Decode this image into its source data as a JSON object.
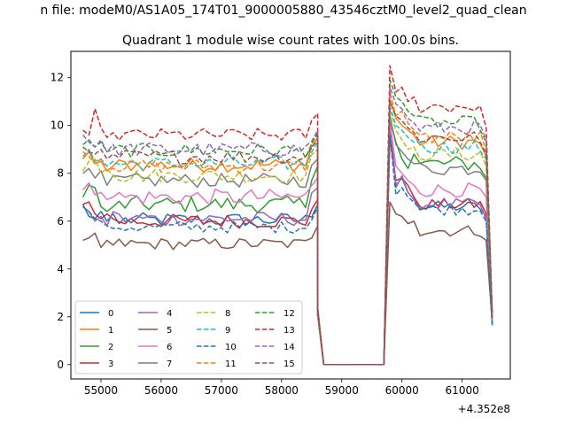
{
  "chart_data": {
    "type": "line",
    "suptitle": "n file: modeM0/AS1A05_174T01_9000005880_43546cztM0_level2_quad_clean",
    "title": "Quadrant 1 module wise count rates with 100.0s bins.",
    "xlabel": "",
    "ylabel": "",
    "x_offset_label": "+4.352e8",
    "xlim": [
      54500,
      61800
    ],
    "ylim": [
      -0.6,
      13.1
    ],
    "xticks": [
      55000,
      56000,
      57000,
      58000,
      59000,
      60000,
      61000
    ],
    "xtick_labels": [
      "55000",
      "56000",
      "57000",
      "58000",
      "59000",
      "60000",
      "61000"
    ],
    "yticks": [
      0,
      2,
      4,
      6,
      8,
      10,
      12
    ],
    "ytick_labels": [
      "0",
      "2",
      "4",
      "6",
      "8",
      "10",
      "12"
    ],
    "grid": false,
    "legend_position": "lower-left",
    "time_segments": [
      {
        "start": 54700,
        "step": 100,
        "count": 40
      },
      {
        "start": 59700,
        "step": 100,
        "count": 19
      }
    ],
    "gap": {
      "x": [
        58700,
        59000,
        59300,
        59600
      ]
    },
    "series": [
      {
        "name": "0",
        "color": "#1f77b4",
        "dash": "solid",
        "first": [
          6.7,
          6.2,
          6.1,
          6.4,
          6.0,
          6.3,
          5.9
        ],
        "base": 6.05,
        "noise": 0.3,
        "end": 6.7,
        "second": [
          10.2,
          7.5,
          7.8,
          7.2,
          6.9
        ],
        "base2": 6.6,
        "noise2": 0.25,
        "end2": 6.2
      },
      {
        "name": "1",
        "color": "#ff7f0e",
        "dash": "solid",
        "first": [
          8.6,
          8.9,
          8.4,
          8.5,
          8.1,
          8.3
        ],
        "base": 8.35,
        "noise": 0.3,
        "end": 9.5,
        "second": [
          11.1,
          10.3,
          10.0,
          9.8,
          9.6
        ],
        "base2": 9.3,
        "noise2": 0.3,
        "end2": 8.7
      },
      {
        "name": "2",
        "color": "#2ca02c",
        "dash": "solid",
        "first": [
          7.0,
          7.5,
          7.4,
          6.6,
          6.4,
          6.6
        ],
        "base": 6.7,
        "noise": 0.35,
        "end": 8.3,
        "second": [
          10.3,
          9.3,
          8.6,
          8.2,
          8.8
        ],
        "base2": 8.4,
        "noise2": 0.35,
        "end2": 7.8
      },
      {
        "name": "3",
        "color": "#d62728",
        "dash": "solid",
        "first": [
          6.7,
          6.8,
          6.3,
          6.1,
          6.3,
          6.1
        ],
        "base": 6.0,
        "noise": 0.3,
        "end": 6.9,
        "second": [
          9.5,
          7.7,
          7.8,
          7.5,
          7.0
        ],
        "base2": 6.7,
        "noise2": 0.25,
        "end2": 6.3
      },
      {
        "name": "4",
        "color": "#9467bd",
        "dash": "solid",
        "first": [
          6.6,
          6.4,
          6.0,
          6.2,
          5.8,
          6.4
        ],
        "base": 6.1,
        "noise": 0.3,
        "end": 7.4,
        "second": [
          10.5,
          7.4,
          7.9,
          7.2,
          6.9
        ],
        "base2": 6.7,
        "noise2": 0.25,
        "end2": 6.1
      },
      {
        "name": "5",
        "color": "#8c564b",
        "dash": "solid",
        "first": [
          5.2,
          5.3,
          5.5,
          4.9,
          5.2,
          5.0
        ],
        "base": 5.05,
        "noise": 0.25,
        "end": 5.8,
        "second": [
          6.8,
          6.3,
          6.2,
          5.9,
          6.0
        ],
        "base2": 5.6,
        "noise2": 0.25,
        "end2": 5.2
      },
      {
        "name": "6",
        "color": "#e377c2",
        "dash": "solid",
        "first": [
          7.3,
          7.6,
          7.1,
          7.2,
          6.9,
          7.0
        ],
        "base": 7.0,
        "noise": 0.35,
        "end": 7.8,
        "second": [
          10.1,
          8.3,
          8.0,
          7.7,
          7.5
        ],
        "base2": 7.3,
        "noise2": 0.3,
        "end2": 7.0
      },
      {
        "name": "7",
        "color": "#7f7f7f",
        "dash": "solid",
        "first": [
          8.0,
          8.2,
          7.8,
          8.1,
          7.5,
          7.9
        ],
        "base": 7.7,
        "noise": 0.3,
        "end": 8.6,
        "second": [
          10.4,
          9.2,
          8.9,
          8.6,
          8.4
        ],
        "base2": 8.2,
        "noise2": 0.3,
        "end2": 7.7
      },
      {
        "name": "8",
        "color": "#bcbd22",
        "dash": "dashed",
        "first": [
          8.1,
          8.5,
          8.6,
          8.0,
          8.2,
          7.9
        ],
        "base": 7.9,
        "noise": 0.3,
        "end": 9.0,
        "second": [
          10.6,
          9.8,
          9.4,
          9.0,
          9.1
        ],
        "base2": 8.8,
        "noise2": 0.3,
        "end2": 8.3
      },
      {
        "name": "9",
        "color": "#17becf",
        "dash": "dashed",
        "first": [
          8.7,
          9.0,
          8.5,
          8.6,
          8.3,
          8.5
        ],
        "base": 8.4,
        "noise": 0.3,
        "end": 9.3,
        "second": [
          10.8,
          10.0,
          9.8,
          9.5,
          9.3
        ],
        "base2": 9.1,
        "noise2": 0.3,
        "end2": 8.6
      },
      {
        "name": "10",
        "color": "#1f77b4",
        "dash": "dashed",
        "first": [
          6.6,
          6.4,
          6.1,
          6.0,
          5.8,
          5.7
        ],
        "base": 5.75,
        "noise": 0.25,
        "end": 6.6,
        "second": [
          9.6,
          7.1,
          7.4,
          7.0,
          6.8
        ],
        "base2": 6.5,
        "noise2": 0.25,
        "end2": 6.0
      },
      {
        "name": "11",
        "color": "#ff7f0e",
        "dash": "dashed",
        "first": [
          8.9,
          8.7,
          8.4,
          8.6,
          8.1,
          8.2
        ],
        "base": 8.3,
        "noise": 0.3,
        "end": 9.6,
        "second": [
          11.4,
          10.4,
          10.6,
          10.1,
          9.8
        ],
        "base2": 9.5,
        "noise2": 0.3,
        "end2": 8.9
      },
      {
        "name": "12",
        "color": "#2ca02c",
        "dash": "dashed",
        "first": [
          9.2,
          9.4,
          9.1,
          9.3,
          8.9,
          9.0
        ],
        "base": 8.95,
        "noise": 0.3,
        "end": 9.7,
        "second": [
          11.9,
          11.2,
          11.0,
          10.6,
          10.4
        ],
        "base2": 10.1,
        "noise2": 0.3,
        "end2": 9.3
      },
      {
        "name": "13",
        "color": "#d62728",
        "dash": "dashed",
        "first": [
          9.8,
          9.6,
          10.7,
          9.9,
          9.5,
          9.7
        ],
        "base": 9.6,
        "noise": 0.28,
        "end": 10.5,
        "second": [
          12.5,
          11.4,
          11.6,
          11.0,
          11.2
        ],
        "base2": 10.8,
        "noise2": 0.3,
        "end2": 9.9
      },
      {
        "name": "14",
        "color": "#9467bd",
        "dash": "dashed",
        "first": [
          9.6,
          9.3,
          9.1,
          9.4,
          8.9,
          9.2
        ],
        "base": 9.0,
        "noise": 0.3,
        "end": 9.8,
        "second": [
          11.6,
          10.9,
          10.7,
          10.3,
          10.1
        ],
        "base2": 9.9,
        "noise2": 0.3,
        "end2": 9.4
      },
      {
        "name": "15",
        "color": "#8c564b",
        "dash": "dashed",
        "first": [
          9.1,
          8.9,
          8.8,
          9.0,
          8.6,
          8.8
        ],
        "base": 8.7,
        "noise": 0.3,
        "end": 9.4,
        "second": [
          11.0,
          10.4,
          10.2,
          9.9,
          9.7
        ],
        "base2": 9.5,
        "noise2": 0.3,
        "end2": 8.8
      }
    ]
  }
}
